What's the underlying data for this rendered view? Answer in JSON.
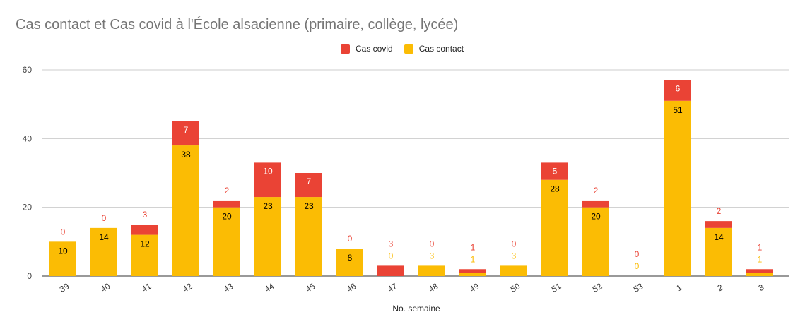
{
  "chart_data": {
    "type": "bar",
    "stacked": true,
    "title": "Cas contact et Cas covid à l'École alsacienne (primaire, collège, lycée)",
    "xlabel": "No. semaine",
    "ylabel": "",
    "ylim": [
      0,
      60
    ],
    "yticks": [
      0,
      20,
      40,
      60
    ],
    "grid": true,
    "legend_position": "top",
    "categories": [
      "39",
      "40",
      "41",
      "42",
      "43",
      "44",
      "45",
      "46",
      "47",
      "48",
      "49",
      "50",
      "51",
      "52",
      "53",
      "1",
      "2",
      "3"
    ],
    "series": [
      {
        "name": "Cas contact",
        "color": "#fbbc04",
        "values": [
          10,
          14,
          12,
          38,
          20,
          23,
          23,
          8,
          0,
          3,
          1,
          3,
          28,
          20,
          0,
          51,
          14,
          1
        ]
      },
      {
        "name": "Cas covid",
        "color": "#ea4335",
        "values": [
          0,
          0,
          3,
          7,
          2,
          10,
          7,
          0,
          3,
          0,
          1,
          0,
          5,
          2,
          0,
          6,
          2,
          1
        ]
      }
    ]
  }
}
